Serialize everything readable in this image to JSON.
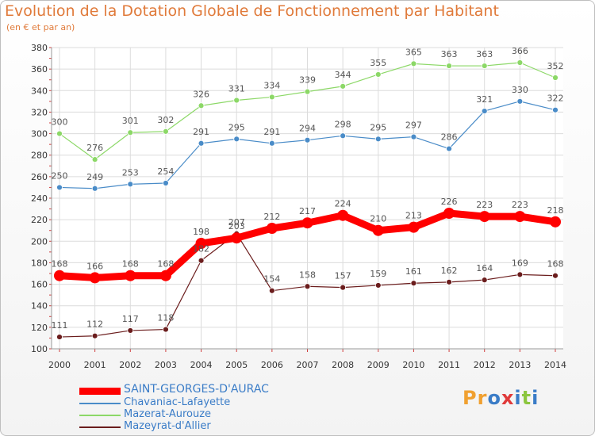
{
  "header": {
    "title": "Evolution de la Dotation Globale de Fonctionnement par Habitant",
    "subtitle": "(en € et par an)"
  },
  "logo": {
    "letters": [
      "P",
      "r",
      "o",
      "x",
      "i",
      "t",
      "i"
    ],
    "colors": [
      "#f0a030",
      "#f0a030",
      "#3a7cc7",
      "#e03a3a",
      "#3a7cc7",
      "#8cc63f",
      "#3a7cc7"
    ]
  },
  "chart_data": {
    "type": "line",
    "title": "Evolution de la Dotation Globale de Fonctionnement par Habitant",
    "subtitle": "(en € et par an)",
    "x": [
      "2000",
      "2001",
      "2002",
      "2003",
      "2004",
      "2005",
      "2006",
      "2007",
      "2008",
      "2009",
      "2010",
      "2011",
      "2012",
      "2013",
      "2014"
    ],
    "ylim": [
      100,
      380
    ],
    "yticks": [
      100,
      120,
      140,
      160,
      180,
      200,
      220,
      240,
      260,
      280,
      300,
      320,
      340,
      360,
      380
    ],
    "grid": true,
    "legend_position": "bottom-left",
    "series": [
      {
        "name": "SAINT-GEORGES-D'AURAC",
        "color": "#ff0000",
        "values": [
          168,
          166,
          168,
          168,
          198,
          203,
          212,
          217,
          224,
          210,
          213,
          226,
          223,
          223,
          218
        ]
      },
      {
        "name": "Chavaniac-Lafayette",
        "color": "#4a8cc8",
        "values": [
          250,
          249,
          253,
          254,
          291,
          295,
          291,
          294,
          298,
          295,
          297,
          286,
          321,
          330,
          322
        ]
      },
      {
        "name": "Mazerat-Aurouze",
        "color": "#8cd867",
        "values": [
          300,
          276,
          301,
          302,
          326,
          331,
          334,
          339,
          344,
          355,
          365,
          363,
          363,
          366,
          352
        ]
      },
      {
        "name": "Mazeyrat-d'Allier",
        "color": "#6b1d1d",
        "values": [
          111,
          112,
          117,
          118,
          182,
          207,
          154,
          158,
          157,
          159,
          161,
          162,
          164,
          169,
          168
        ]
      }
    ]
  }
}
